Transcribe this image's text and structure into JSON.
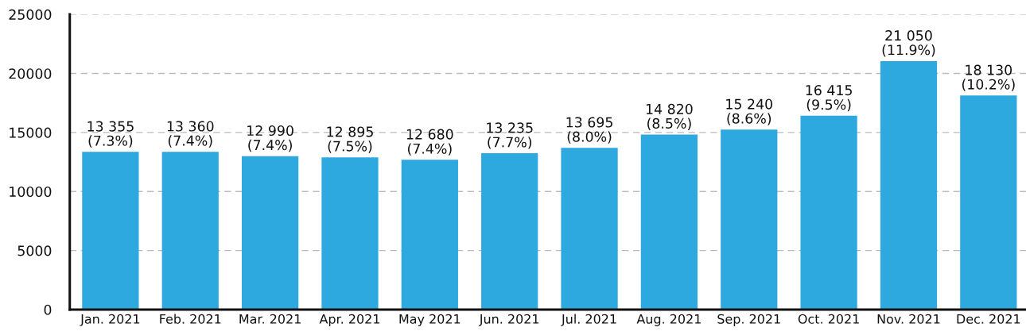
{
  "chart_data": {
    "type": "bar",
    "categories": [
      "Jan. 2021",
      "Feb. 2021",
      "Mar. 2021",
      "Apr. 2021",
      "May 2021",
      "Jun. 2021",
      "Jul. 2021",
      "Aug. 2021",
      "Sep. 2021",
      "Oct. 2021",
      "Nov. 2021",
      "Dec. 2021"
    ],
    "values": [
      13355,
      13360,
      12990,
      12895,
      12680,
      13235,
      13695,
      14820,
      15240,
      16415,
      21050,
      18130
    ],
    "value_labels": [
      "13 355\n(7.3%)",
      "13 360\n(7.4%)",
      "12 990\n(7.4%)",
      "12 895\n(7.5%)",
      "12 680\n(7.4%)",
      "13 235\n(7.7%)",
      "13 695\n(8.0%)",
      "14 820\n(8.5%)",
      "15 240\n(8.6%)",
      "16 415\n(9.5%)",
      "21 050\n(11.9%)",
      "18 130\n(10.2%)"
    ],
    "color": "#2ea9df",
    "ylim": [
      0,
      25000
    ],
    "yticks": [
      0,
      5000,
      10000,
      15000,
      20000,
      25000
    ],
    "grid": "y"
  }
}
